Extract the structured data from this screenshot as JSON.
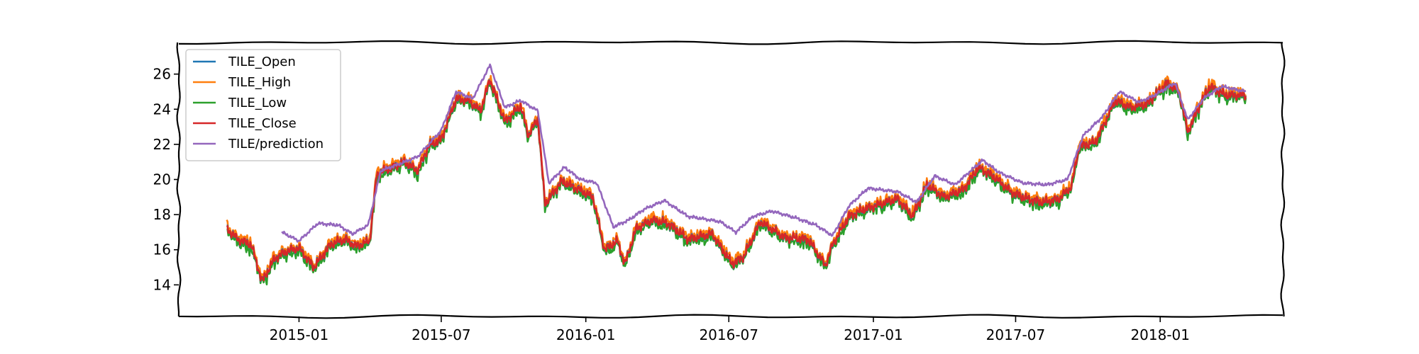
{
  "chart_data": {
    "type": "line",
    "title": "",
    "xlabel": "",
    "ylabel": "",
    "xlim": [
      "2014-08-01",
      "2018-06-06"
    ],
    "ylim": [
      12.2,
      27.8
    ],
    "grid": false,
    "legend_position": "top-left",
    "x_tick_labels": [
      "2015-01",
      "2015-07",
      "2016-01",
      "2016-07",
      "2017-01",
      "2017-07",
      "2018-01"
    ],
    "x_tick_dates": [
      "2015-01-01",
      "2015-07-01",
      "2016-01-01",
      "2016-07-01",
      "2017-01-01",
      "2017-07-01",
      "2018-01-01"
    ],
    "y_ticks": [
      14,
      16,
      18,
      20,
      22,
      24,
      26
    ],
    "colors": {
      "open": "#1f77b4",
      "high": "#ff7f0e",
      "low": "#2ca02c",
      "close": "#d62728",
      "prediction": "#9467bd"
    },
    "series": [
      {
        "name": "TILE_Open",
        "key": "open"
      },
      {
        "name": "TILE_High",
        "key": "high"
      },
      {
        "name": "TILE_Low",
        "key": "low"
      },
      {
        "name": "TILE_Close",
        "key": "close"
      },
      {
        "name": "TILE/prediction",
        "key": "prediction"
      }
    ],
    "close_points": [
      [
        "2014-10-01",
        17.2
      ],
      [
        "2014-10-15",
        16.6
      ],
      [
        "2014-11-01",
        16.3
      ],
      [
        "2014-11-15",
        14.2
      ],
      [
        "2014-12-01",
        15.5
      ],
      [
        "2014-12-15",
        15.9
      ],
      [
        "2015-01-01",
        16.1
      ],
      [
        "2015-01-20",
        15.0
      ],
      [
        "2015-02-10",
        16.3
      ],
      [
        "2015-03-01",
        16.6
      ],
      [
        "2015-03-15",
        16.2
      ],
      [
        "2015-04-01",
        16.5
      ],
      [
        "2015-04-10",
        20.3
      ],
      [
        "2015-04-25",
        20.6
      ],
      [
        "2015-05-15",
        21.0
      ],
      [
        "2015-06-01",
        20.5
      ],
      [
        "2015-06-15",
        21.9
      ],
      [
        "2015-07-01",
        22.3
      ],
      [
        "2015-07-20",
        24.6
      ],
      [
        "2015-08-05",
        24.5
      ],
      [
        "2015-08-20",
        23.9
      ],
      [
        "2015-09-01",
        25.7
      ],
      [
        "2015-09-20",
        23.3
      ],
      [
        "2015-10-10",
        24.2
      ],
      [
        "2015-10-20",
        22.5
      ],
      [
        "2015-11-01",
        23.5
      ],
      [
        "2015-11-10",
        18.6
      ],
      [
        "2015-12-01",
        19.9
      ],
      [
        "2015-12-20",
        19.5
      ],
      [
        "2016-01-10",
        19.0
      ],
      [
        "2016-01-25",
        16.0
      ],
      [
        "2016-02-10",
        16.5
      ],
      [
        "2016-02-20",
        15.2
      ],
      [
        "2016-03-05",
        17.2
      ],
      [
        "2016-03-25",
        17.7
      ],
      [
        "2016-04-15",
        17.5
      ],
      [
        "2016-05-10",
        16.6
      ],
      [
        "2016-06-10",
        16.9
      ],
      [
        "2016-07-05",
        15.2
      ],
      [
        "2016-07-20",
        15.6
      ],
      [
        "2016-08-10",
        17.6
      ],
      [
        "2016-09-10",
        16.7
      ],
      [
        "2016-10-10",
        16.6
      ],
      [
        "2016-11-01",
        15.1
      ],
      [
        "2016-11-10",
        16.3
      ],
      [
        "2016-12-01",
        17.9
      ],
      [
        "2016-12-20",
        18.3
      ],
      [
        "2017-01-10",
        18.6
      ],
      [
        "2017-02-01",
        18.9
      ],
      [
        "2017-02-20",
        17.9
      ],
      [
        "2017-03-10",
        19.7
      ],
      [
        "2017-04-01",
        19.0
      ],
      [
        "2017-04-25",
        19.4
      ],
      [
        "2017-05-15",
        20.7
      ],
      [
        "2017-06-05",
        20.1
      ],
      [
        "2017-06-25",
        19.3
      ],
      [
        "2017-07-15",
        18.9
      ],
      [
        "2017-08-05",
        18.7
      ],
      [
        "2017-08-25",
        18.9
      ],
      [
        "2017-09-10",
        19.6
      ],
      [
        "2017-09-20",
        21.9
      ],
      [
        "2017-10-10",
        22.1
      ],
      [
        "2017-10-20",
        23.0
      ],
      [
        "2017-11-05",
        24.5
      ],
      [
        "2017-11-25",
        24.1
      ],
      [
        "2017-12-15",
        24.3
      ],
      [
        "2018-01-10",
        25.5
      ],
      [
        "2018-01-25",
        25.0
      ],
      [
        "2018-02-05",
        22.7
      ],
      [
        "2018-02-20",
        24.2
      ],
      [
        "2018-03-05",
        25.3
      ],
      [
        "2018-03-25",
        24.8
      ],
      [
        "2018-04-20",
        24.8
      ]
    ],
    "prediction_points": [
      [
        "2014-12-10",
        17.0
      ],
      [
        "2015-01-01",
        16.5
      ],
      [
        "2015-01-25",
        17.5
      ],
      [
        "2015-02-20",
        17.4
      ],
      [
        "2015-03-10",
        16.9
      ],
      [
        "2015-03-30",
        17.4
      ],
      [
        "2015-04-15",
        20.5
      ],
      [
        "2015-05-10",
        20.9
      ],
      [
        "2015-06-01",
        21.3
      ],
      [
        "2015-07-01",
        22.8
      ],
      [
        "2015-07-20",
        25.0
      ],
      [
        "2015-08-10",
        24.6
      ],
      [
        "2015-09-01",
        26.5
      ],
      [
        "2015-09-20",
        24.1
      ],
      [
        "2015-10-10",
        24.5
      ],
      [
        "2015-11-01",
        23.9
      ],
      [
        "2015-11-15",
        19.8
      ],
      [
        "2015-12-05",
        20.7
      ],
      [
        "2015-12-25",
        20.0
      ],
      [
        "2016-01-15",
        19.8
      ],
      [
        "2016-02-05",
        17.3
      ],
      [
        "2016-02-25",
        17.7
      ],
      [
        "2016-03-15",
        18.3
      ],
      [
        "2016-04-10",
        18.8
      ],
      [
        "2016-05-10",
        17.9
      ],
      [
        "2016-06-20",
        17.6
      ],
      [
        "2016-07-10",
        17.0
      ],
      [
        "2016-08-01",
        17.9
      ],
      [
        "2016-08-25",
        18.2
      ],
      [
        "2016-09-25",
        17.8
      ],
      [
        "2016-10-20",
        17.4
      ],
      [
        "2016-11-10",
        16.8
      ],
      [
        "2016-12-01",
        18.5
      ],
      [
        "2016-12-25",
        19.5
      ],
      [
        "2017-02-01",
        19.3
      ],
      [
        "2017-02-25",
        18.7
      ],
      [
        "2017-03-20",
        20.2
      ],
      [
        "2017-04-15",
        19.7
      ],
      [
        "2017-05-20",
        21.1
      ],
      [
        "2017-06-10",
        20.4
      ],
      [
        "2017-07-10",
        19.8
      ],
      [
        "2017-08-10",
        19.7
      ],
      [
        "2017-09-05",
        20.0
      ],
      [
        "2017-09-25",
        22.5
      ],
      [
        "2017-10-20",
        23.6
      ],
      [
        "2017-11-10",
        25.0
      ],
      [
        "2017-12-05",
        24.4
      ],
      [
        "2017-12-25",
        24.8
      ],
      [
        "2018-01-20",
        25.5
      ],
      [
        "2018-02-05",
        23.4
      ],
      [
        "2018-02-25",
        24.6
      ],
      [
        "2018-03-20",
        25.3
      ],
      [
        "2018-04-20",
        25.0
      ]
    ]
  }
}
